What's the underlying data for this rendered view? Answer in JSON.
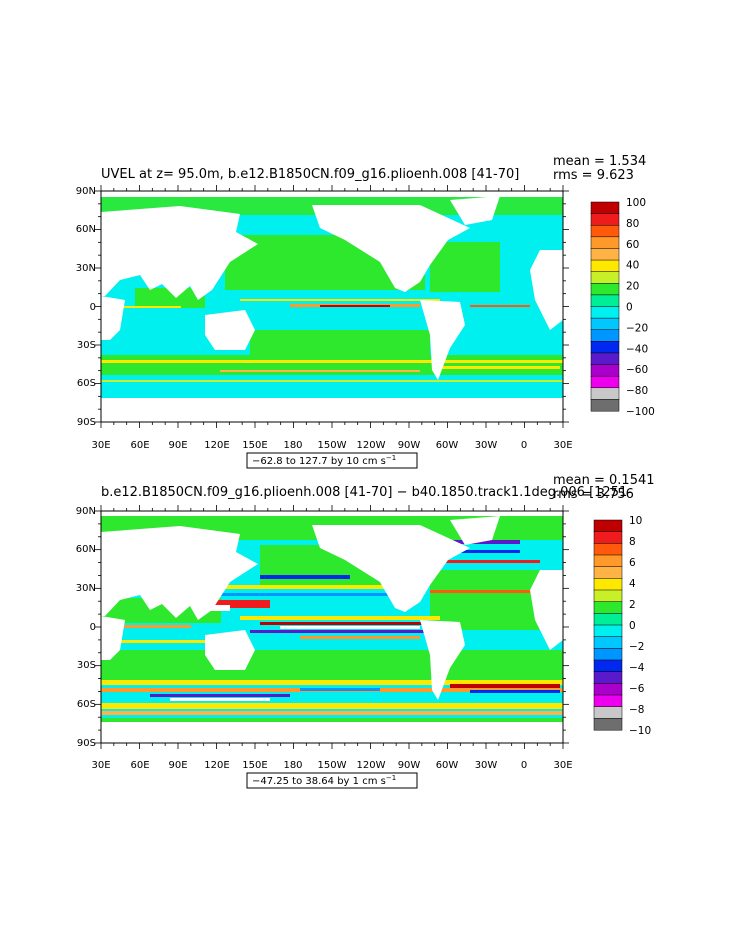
{
  "panels": [
    {
      "title": "UVEL at z=  95.0m, b.e12.B1850CN.f09_g16.plioenh.008 [41-70]",
      "stats": {
        "mean": "mean = 1.534",
        "rms": "rms = 9.623"
      },
      "range_note": "−62.8 to 127.7 by 10 cm s",
      "units_exp": "−1",
      "colorbar": {
        "labels": [
          "100",
          "80",
          "60",
          "40",
          "20",
          "0",
          "−20",
          "−40",
          "−60",
          "−80",
          "−100"
        ],
        "colors": [
          "#c00000",
          "#ee1c1c",
          "#ff5a0c",
          "#ff9a2a",
          "#ffb347",
          "#ffe800",
          "#c8f028",
          "#2ee82e",
          "#00ee96",
          "#00f0f0",
          "#00c8ff",
          "#0096ff",
          "#0028ee",
          "#5a1acc",
          "#aa00cc",
          "#ee00ee",
          "#c8c8c8",
          "#6e6e6e"
        ]
      }
    },
    {
      "title": "b.e12.B1850CN.f09_g16.plioenh.008 [41-70] − b40.1850.track1.1deg.006 [1251-",
      "stats": {
        "mean": "mean = 0.1541",
        "rms": "rms = 3.756"
      },
      "range_note": "−47.25 to 38.64 by 1 cm s",
      "units_exp": "−1",
      "colorbar": {
        "labels": [
          "10",
          "8",
          "6",
          "4",
          "2",
          "0",
          "−2",
          "−4",
          "−6",
          "−8",
          "−10"
        ],
        "colors": [
          "#c00000",
          "#ee1c1c",
          "#ff5a0c",
          "#ff9a2a",
          "#ffb347",
          "#ffe800",
          "#c8f028",
          "#2ee82e",
          "#00ee96",
          "#00f0f0",
          "#00c8ff",
          "#0096ff",
          "#0028ee",
          "#5a1acc",
          "#aa00cc",
          "#ee00ee",
          "#c8c8c8",
          "#6e6e6e"
        ]
      }
    }
  ],
  "axes": {
    "lat_labels": [
      "90N",
      "60N",
      "30N",
      "0",
      "30S",
      "60S",
      "90S"
    ],
    "lon_labels": [
      "30E",
      "60E",
      "90E",
      "120E",
      "150E",
      "180",
      "150W",
      "120W",
      "90W",
      "60W",
      "30W",
      "0",
      "30E"
    ]
  },
  "map_colors": {
    "ocean_base": "#00f0f0",
    "ocean_pos": "#2ee82e",
    "land": "#ffffff"
  }
}
